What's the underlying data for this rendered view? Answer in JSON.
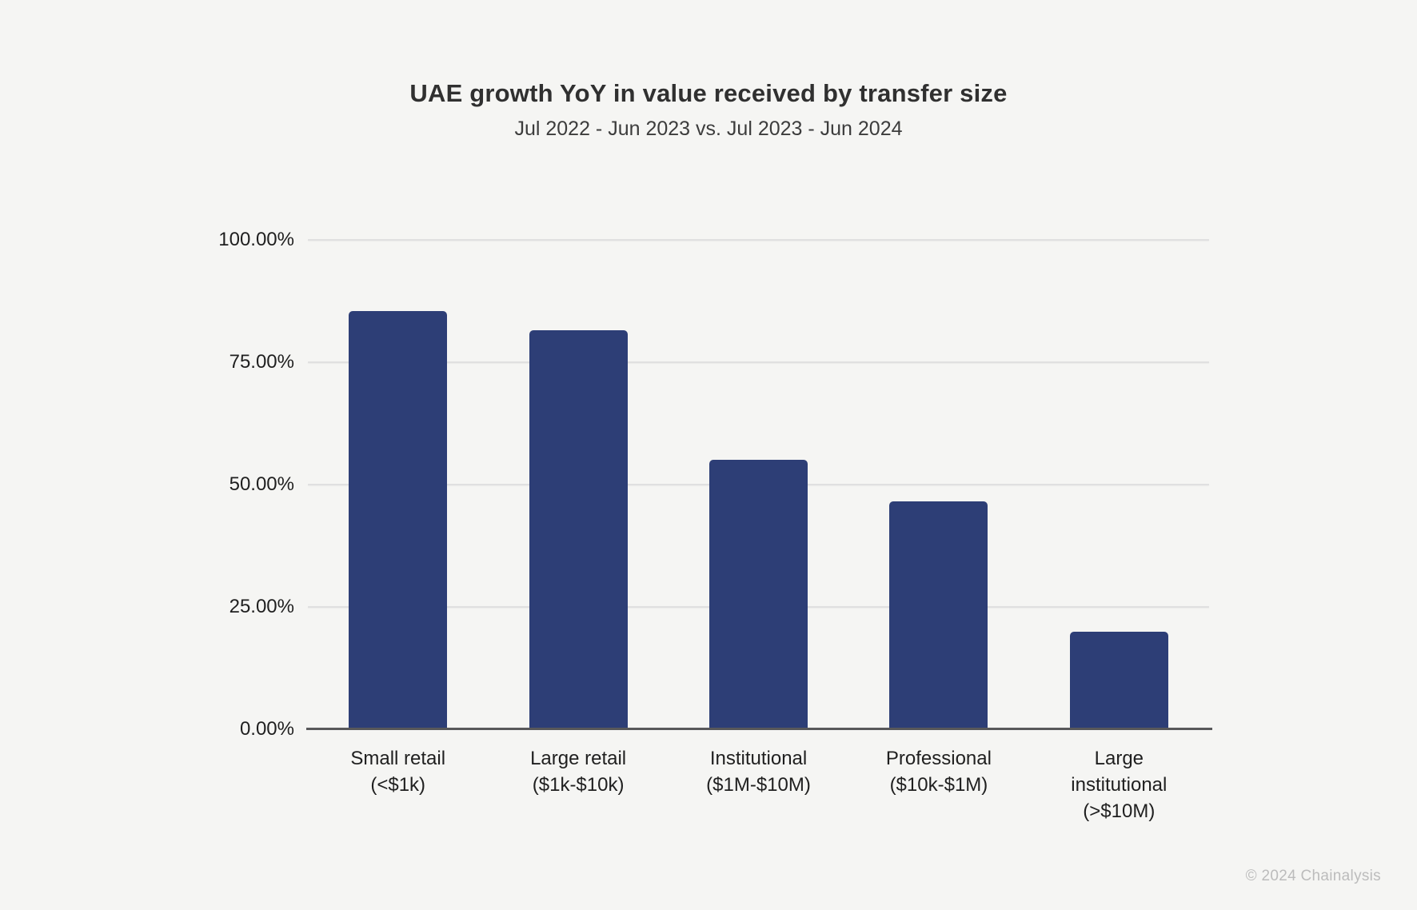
{
  "page": {
    "background_color": "#f5f5f3"
  },
  "header": {
    "title": "UAE growth YoY in value received by transfer size",
    "subtitle": "Jul 2022 - Jun 2023 vs. Jul 2023 - Jun 2024"
  },
  "footer": {
    "copyright": "© 2024 Chainalysis"
  },
  "chart_data": {
    "type": "bar",
    "title": "UAE growth YoY in value received by transfer size",
    "subtitle": "Jul 2022 - Jun 2023 vs. Jul 2023 - Jun 2024",
    "categories": [
      "Small retail (<$1k)",
      "Large retail ($1k-$10k)",
      "Institutional ($1M-$10M)",
      "Professional ($10k-$1M)",
      "Large institutional (>$10M)"
    ],
    "category_label_lines": [
      "Small retail\n(<$1k)",
      "Large retail\n($1k-$10k)",
      "Institutional\n($1M-$10M)",
      "Professional\n($10k-$1M)",
      "Large\ninstitutional\n(>$10M)"
    ],
    "values": [
      85.5,
      81.5,
      55.0,
      46.5,
      20.0
    ],
    "unit": "%",
    "yticks": [
      "100.00%",
      "75.00%",
      "50.00%",
      "25.00%",
      "0.00%"
    ],
    "ylim": [
      0,
      100
    ],
    "ytick_step": 25,
    "grid": "horizontal",
    "legend": "none",
    "xlabel": "",
    "ylabel": "",
    "bar_color": "#2d3e76",
    "gridline_color": "#e0e0e0",
    "axis_color": "#58585a"
  }
}
